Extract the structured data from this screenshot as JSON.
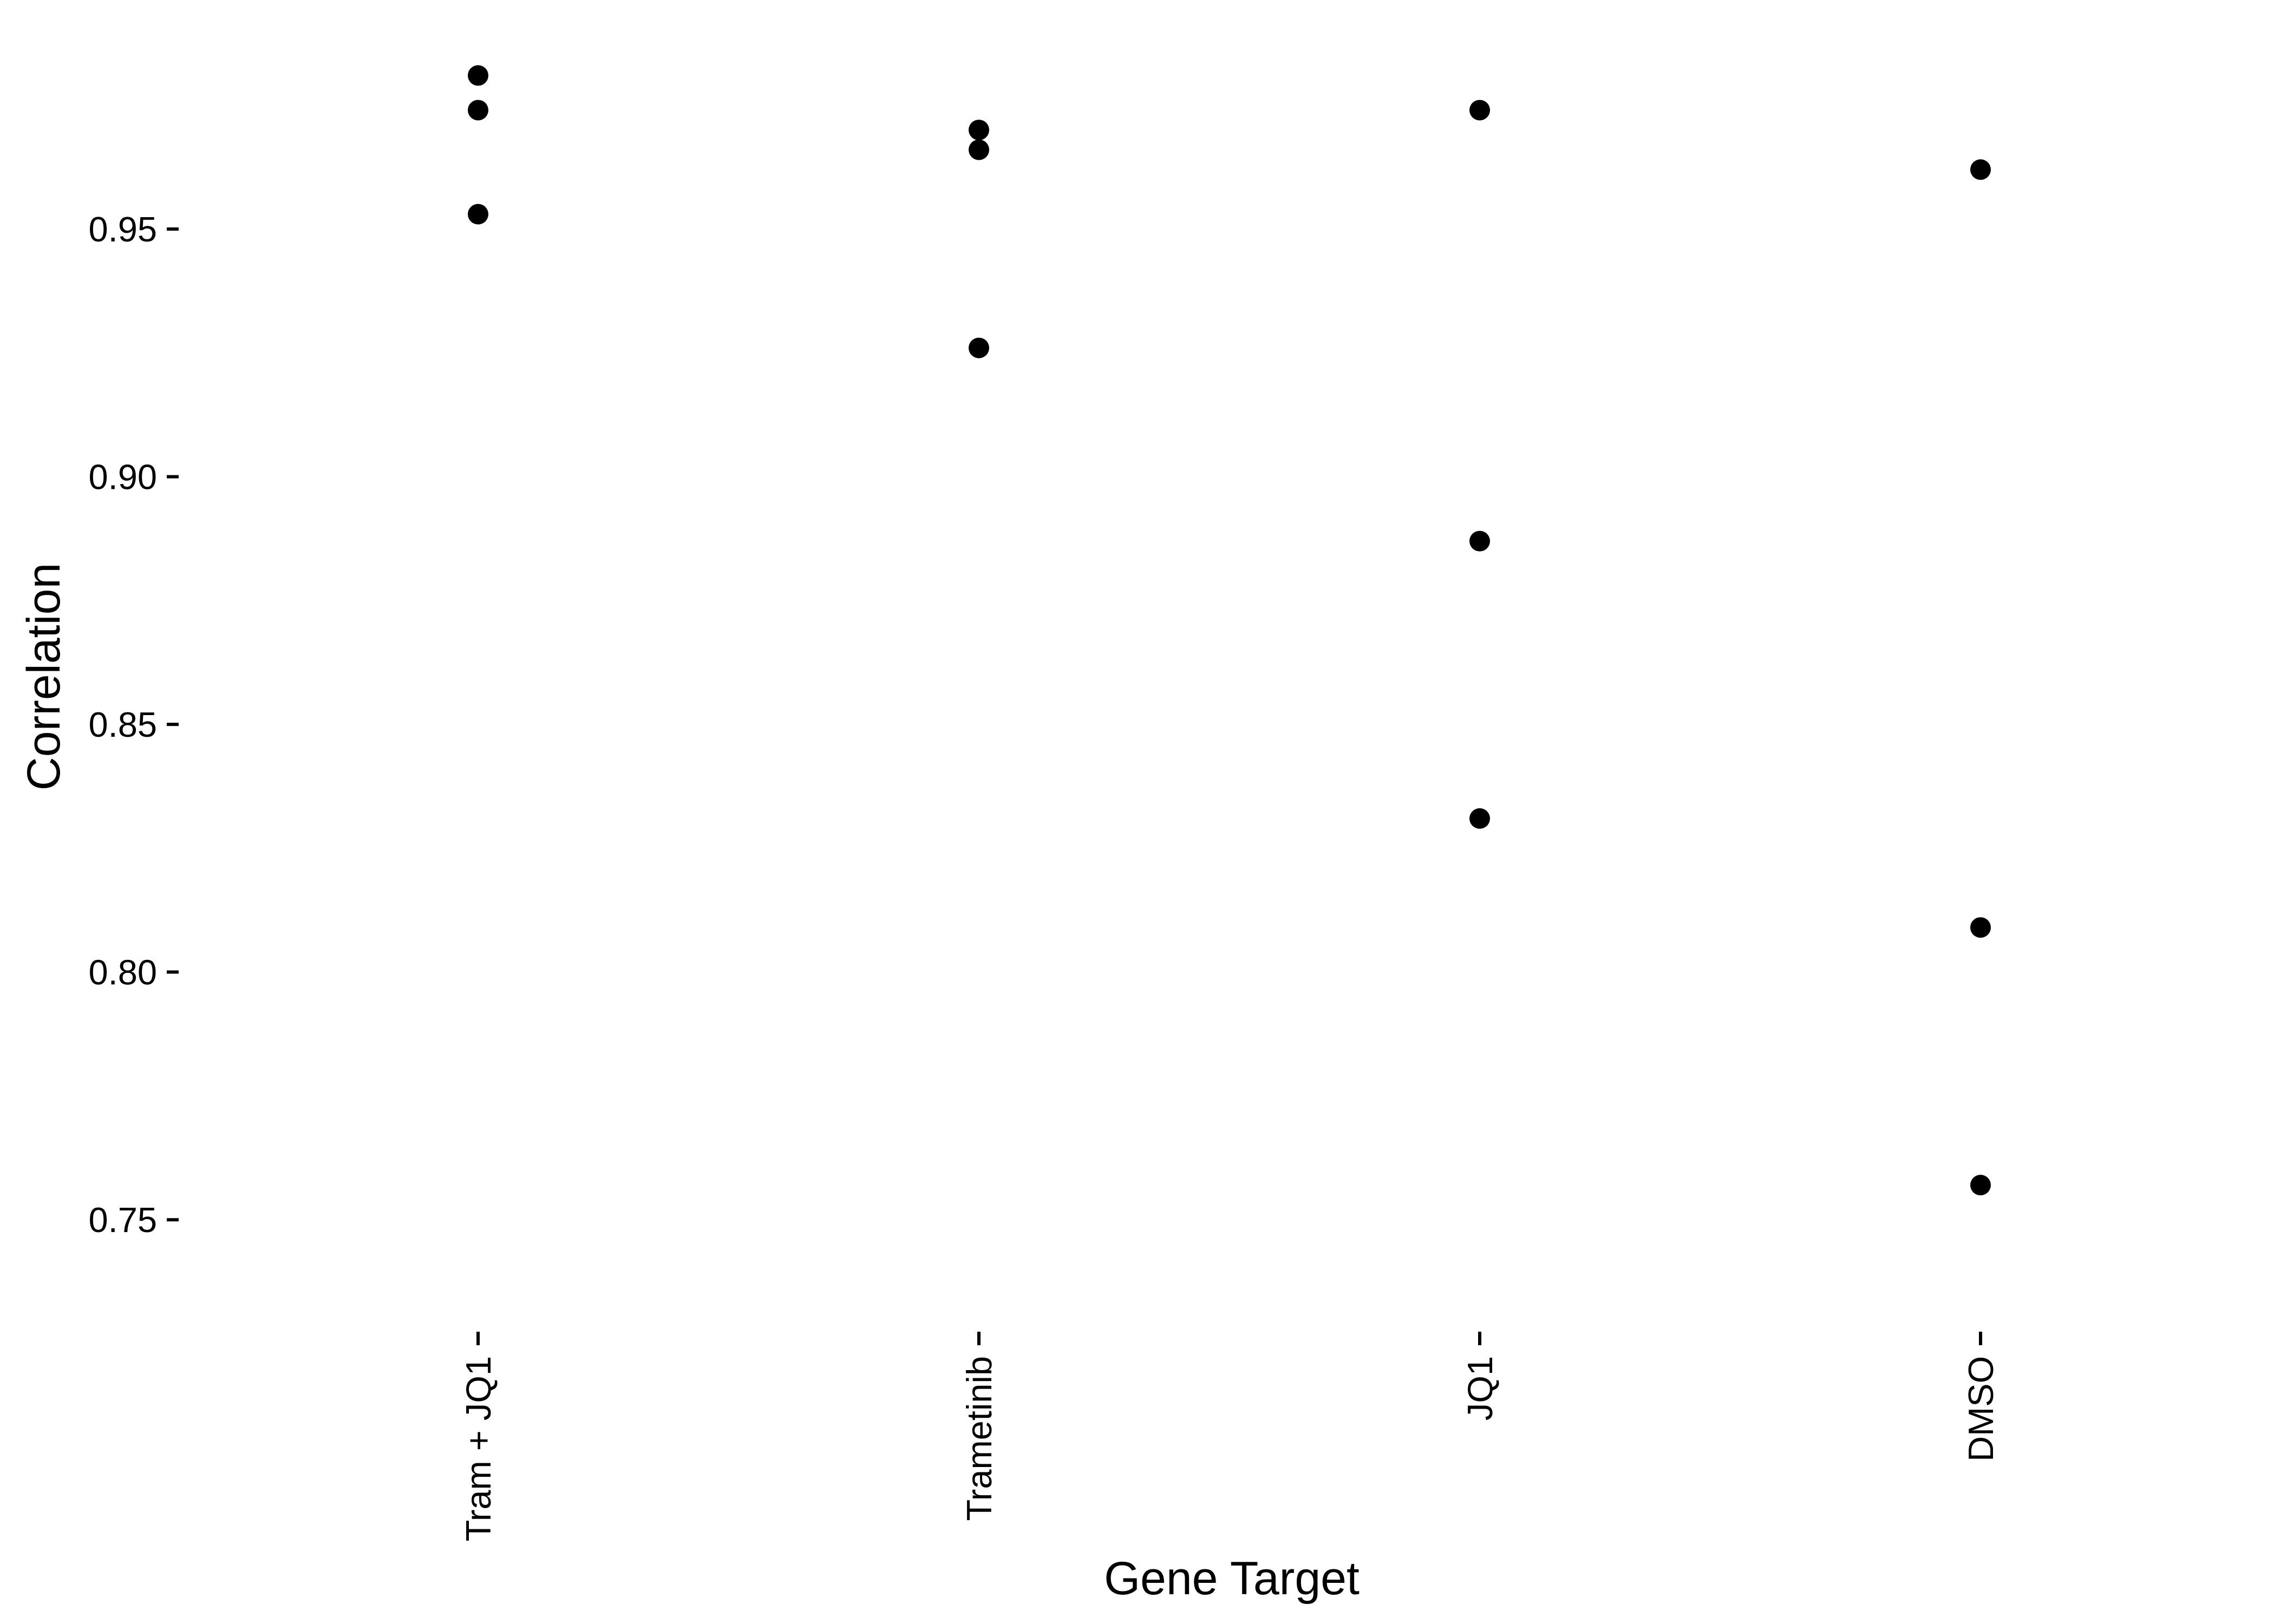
{
  "chart_data": {
    "type": "scatter",
    "title": "",
    "xlabel": "Gene Target",
    "ylabel": "Correlation",
    "categories": [
      "Tram + JQ1",
      "Trametinib",
      "JQ1",
      "DMSO"
    ],
    "ylim": [
      0.7274,
      0.9864
    ],
    "yticks": [
      0.75,
      0.8,
      0.85,
      0.9,
      0.95
    ],
    "ytick_labels": [
      "0.75",
      "0.80",
      "0.85",
      "0.90",
      "0.95"
    ],
    "grid": false,
    "legend": "none",
    "point_color": "#000000",
    "points": [
      {
        "category": "Tram + JQ1",
        "y": 0.981
      },
      {
        "category": "Tram + JQ1",
        "y": 0.974
      },
      {
        "category": "Tram + JQ1",
        "y": 0.953
      },
      {
        "category": "Trametinib",
        "y": 0.97
      },
      {
        "category": "Trametinib",
        "y": 0.966
      },
      {
        "category": "Trametinib",
        "y": 0.926
      },
      {
        "category": "JQ1",
        "y": 0.974
      },
      {
        "category": "JQ1",
        "y": 0.887
      },
      {
        "category": "JQ1",
        "y": 0.831
      },
      {
        "category": "DMSO",
        "y": 0.962
      },
      {
        "category": "DMSO",
        "y": 0.809
      },
      {
        "category": "DMSO",
        "y": 0.757
      }
    ]
  }
}
